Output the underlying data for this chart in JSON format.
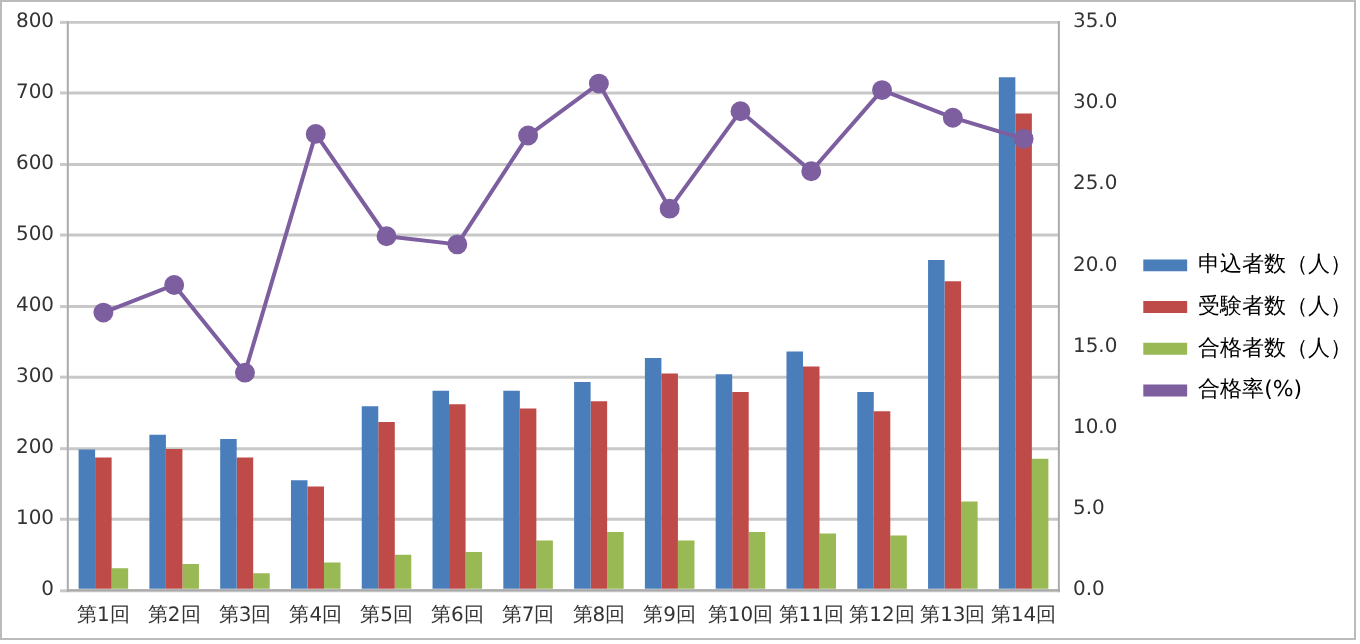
{
  "chart_data": {
    "type": "bar",
    "categories": [
      "第1回",
      "第2回",
      "第3回",
      "第4回",
      "第5回",
      "第6回",
      "第7回",
      "第8回",
      "第9回",
      "第10回",
      "第11回",
      "第12回",
      "第13回",
      "第14回"
    ],
    "series": [
      {
        "name": "申込者数（人）",
        "color": "#4a7ebb",
        "values": [
          198,
          219,
          213,
          155,
          259,
          281,
          281,
          293,
          327,
          304,
          336,
          279,
          465,
          722
        ]
      },
      {
        "name": "受験者数（人）",
        "color": "#be4b48",
        "values": [
          187,
          199,
          187,
          146,
          237,
          262,
          256,
          266,
          305,
          279,
          315,
          252,
          435,
          671
        ]
      },
      {
        "name": "合格者数（人）",
        "color": "#98b954",
        "values": [
          31,
          37,
          24,
          39,
          50,
          54,
          70,
          82,
          70,
          82,
          80,
          77,
          125,
          185
        ]
      },
      {
        "name": "合格率(%)",
        "type": "line",
        "axis": "y2",
        "color": "#7d5fa0",
        "values": [
          17.1,
          18.8,
          13.4,
          28.1,
          21.8,
          21.3,
          28.0,
          31.2,
          23.5,
          29.5,
          25.8,
          30.8,
          29.1,
          27.8
        ]
      }
    ],
    "ylim": [
      0,
      800
    ],
    "yticks": [
      0,
      100,
      200,
      300,
      400,
      500,
      600,
      700,
      800
    ],
    "y2lim": [
      0,
      35
    ],
    "y2ticks": [
      {
        "value": 0,
        "label": "0.0"
      },
      {
        "value": 5,
        "label": "5.0"
      },
      {
        "value": 10,
        "label": "10.0"
      },
      {
        "value": 15,
        "label": "15.0"
      },
      {
        "value": 20,
        "label": "20.0"
      },
      {
        "value": 25,
        "label": "25.0"
      },
      {
        "value": 30,
        "label": "30.0"
      },
      {
        "value": 35,
        "label": "35.0"
      }
    ],
    "grid": "y",
    "legend": "right",
    "marker": "circle"
  }
}
